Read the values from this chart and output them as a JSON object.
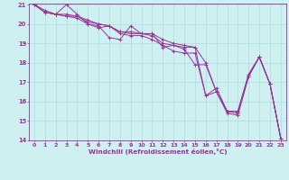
{
  "xlabel": "Windchill (Refroidissement éolien,°C)",
  "bg_color": "#cff0f0",
  "line_color": "#993399",
  "grid_color": "#aadddd",
  "spine_color": "#993399",
  "lines": [
    [
      0,
      21.0
    ],
    [
      1,
      20.7
    ],
    [
      2,
      20.5
    ],
    [
      3,
      21.0
    ],
    [
      4,
      20.5
    ],
    [
      5,
      20.0
    ],
    [
      6,
      19.9
    ],
    [
      7,
      19.3
    ],
    [
      8,
      19.2
    ],
    [
      9,
      19.9
    ],
    [
      10,
      19.5
    ],
    [
      11,
      19.5
    ],
    [
      12,
      18.8
    ],
    [
      13,
      18.9
    ],
    [
      14,
      18.8
    ],
    [
      15,
      18.8
    ],
    [
      16,
      16.3
    ],
    [
      17,
      16.7
    ],
    [
      18,
      15.5
    ],
    [
      19,
      15.5
    ],
    [
      20,
      17.4
    ],
    [
      21,
      18.3
    ],
    [
      22,
      16.9
    ],
    [
      23,
      14.1
    ]
  ],
  "lines2": [
    [
      0,
      21.0
    ],
    [
      1,
      20.6
    ],
    [
      2,
      20.5
    ],
    [
      3,
      20.4
    ],
    [
      4,
      20.3
    ],
    [
      5,
      20.0
    ],
    [
      6,
      19.8
    ],
    [
      7,
      19.9
    ],
    [
      8,
      19.5
    ],
    [
      9,
      19.4
    ],
    [
      10,
      19.4
    ],
    [
      11,
      19.2
    ],
    [
      12,
      18.9
    ],
    [
      13,
      18.6
    ],
    [
      14,
      18.5
    ],
    [
      15,
      18.5
    ],
    [
      16,
      16.3
    ],
    [
      17,
      16.5
    ],
    [
      18,
      15.5
    ],
    [
      19,
      15.5
    ],
    [
      20,
      17.4
    ],
    [
      21,
      18.3
    ],
    [
      22,
      16.9
    ],
    [
      23,
      14.1
    ]
  ],
  "lines3": [
    [
      0,
      21.0
    ],
    [
      1,
      20.6
    ],
    [
      2,
      20.5
    ],
    [
      3,
      20.4
    ],
    [
      4,
      20.4
    ],
    [
      5,
      20.1
    ],
    [
      6,
      20.0
    ],
    [
      7,
      19.9
    ],
    [
      8,
      19.6
    ],
    [
      9,
      19.5
    ],
    [
      10,
      19.5
    ],
    [
      11,
      19.4
    ],
    [
      12,
      19.0
    ],
    [
      13,
      18.9
    ],
    [
      14,
      18.7
    ],
    [
      15,
      17.9
    ],
    [
      16,
      17.9
    ],
    [
      17,
      16.5
    ],
    [
      18,
      15.4
    ],
    [
      19,
      15.3
    ],
    [
      20,
      17.3
    ],
    [
      21,
      18.3
    ],
    [
      22,
      16.9
    ],
    [
      23,
      14.1
    ]
  ],
  "lines4": [
    [
      0,
      21.0
    ],
    [
      1,
      20.6
    ],
    [
      2,
      20.5
    ],
    [
      3,
      20.5
    ],
    [
      4,
      20.4
    ],
    [
      5,
      20.2
    ],
    [
      6,
      20.0
    ],
    [
      7,
      19.9
    ],
    [
      8,
      19.6
    ],
    [
      9,
      19.6
    ],
    [
      10,
      19.5
    ],
    [
      11,
      19.5
    ],
    [
      12,
      19.2
    ],
    [
      13,
      19.0
    ],
    [
      14,
      18.9
    ],
    [
      15,
      18.8
    ],
    [
      16,
      18.0
    ],
    [
      17,
      16.5
    ],
    [
      18,
      15.5
    ],
    [
      19,
      15.4
    ],
    [
      20,
      17.3
    ],
    [
      21,
      18.3
    ],
    [
      22,
      16.9
    ],
    [
      23,
      14.1
    ]
  ],
  "ylim": [
    14,
    21
  ],
  "xlim": [
    -0.5,
    23.5
  ],
  "yticks": [
    14,
    15,
    16,
    17,
    18,
    19,
    20,
    21
  ],
  "xticks": [
    0,
    1,
    2,
    3,
    4,
    5,
    6,
    7,
    8,
    9,
    10,
    11,
    12,
    13,
    14,
    15,
    16,
    17,
    18,
    19,
    20,
    21,
    22,
    23
  ],
  "tick_fontsize": 4.5,
  "xlabel_fontsize": 5.2,
  "linewidth": 0.7,
  "markersize": 2.5,
  "marker": "+"
}
